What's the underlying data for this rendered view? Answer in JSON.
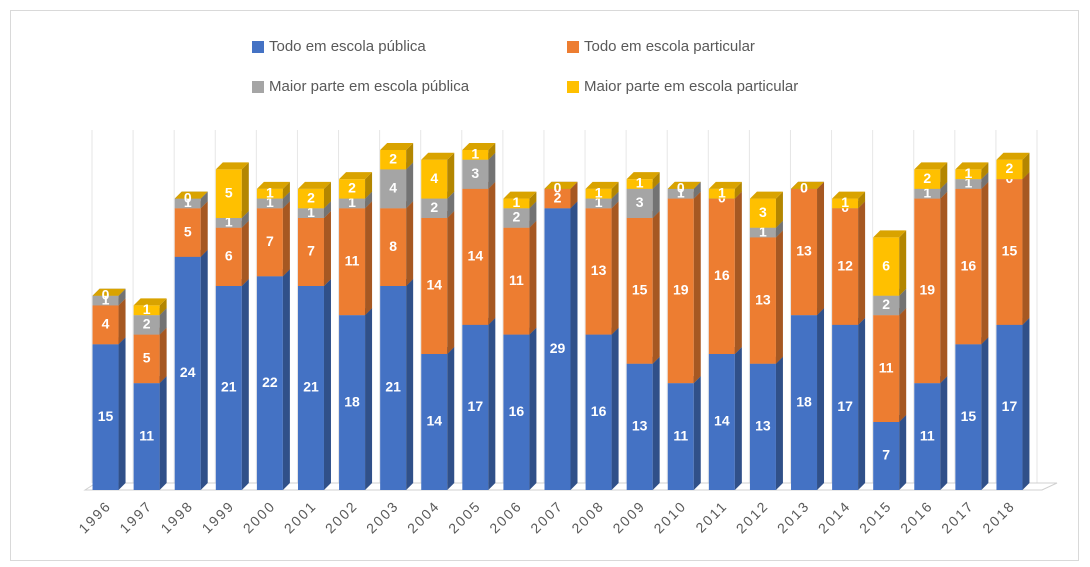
{
  "chart_data": {
    "type": "bar3d_stacked",
    "categories": [
      "1996",
      "1997",
      "1998",
      "1999",
      "2000",
      "2001",
      "2002",
      "2003",
      "2004",
      "2005",
      "2006",
      "2007",
      "2008",
      "2009",
      "2010",
      "2011",
      "2012",
      "2013",
      "2014",
      "2015",
      "2016",
      "2017",
      "2018"
    ],
    "series": [
      {
        "name": "Todo em escola pública",
        "color": "#4472c4",
        "values": [
          15,
          11,
          24,
          21,
          22,
          21,
          18,
          21,
          14,
          17,
          16,
          29,
          16,
          13,
          11,
          14,
          13,
          18,
          17,
          7,
          11,
          15,
          17
        ]
      },
      {
        "name": "Todo em escola particular",
        "color": "#ed7d31",
        "values": [
          4,
          5,
          5,
          6,
          7,
          7,
          11,
          8,
          14,
          14,
          11,
          2,
          13,
          15,
          19,
          16,
          13,
          13,
          12,
          11,
          19,
          16,
          15
        ]
      },
      {
        "name": "Maior parte em escola pública",
        "color": "#a5a5a5",
        "values": [
          1,
          2,
          1,
          1,
          1,
          1,
          1,
          4,
          2,
          3,
          2,
          0,
          1,
          3,
          1,
          0,
          1,
          0,
          0,
          2,
          1,
          1,
          0
        ]
      },
      {
        "name": "Maior parte em escola particular",
        "color": "#ffc000",
        "values": [
          0,
          1,
          0,
          5,
          1,
          2,
          2,
          2,
          4,
          1,
          1,
          0,
          1,
          1,
          0,
          1,
          3,
          0,
          1,
          6,
          2,
          1,
          2
        ]
      }
    ]
  }
}
